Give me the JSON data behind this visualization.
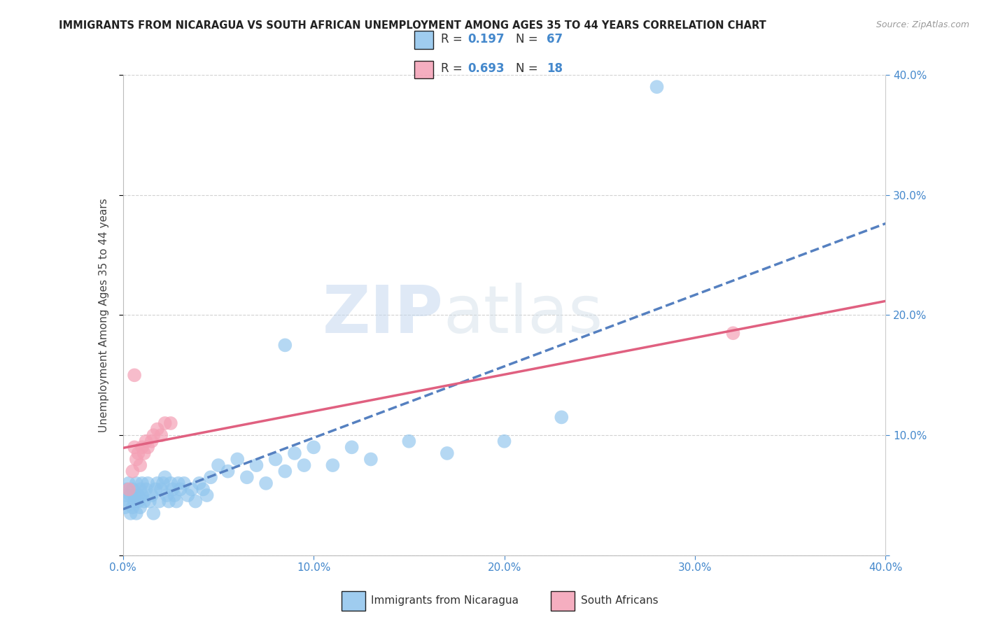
{
  "title": "IMMIGRANTS FROM NICARAGUA VS SOUTH AFRICAN UNEMPLOYMENT AMONG AGES 35 TO 44 YEARS CORRELATION CHART",
  "source": "Source: ZipAtlas.com",
  "ylabel": "Unemployment Among Ages 35 to 44 years",
  "xlim": [
    0.0,
    0.4
  ],
  "ylim": [
    0.0,
    0.4
  ],
  "xticks": [
    0.0,
    0.1,
    0.2,
    0.3,
    0.4
  ],
  "yticks": [
    0.0,
    0.1,
    0.2,
    0.3,
    0.4
  ],
  "grid_color": "#cccccc",
  "watermark_zip": "ZIP",
  "watermark_atlas": "atlas",
  "r_nicaragua": 0.197,
  "n_nicaragua": 67,
  "r_south_africa": 0.693,
  "n_south_africa": 18,
  "color_nicaragua": "#8ec4ed",
  "color_south_africa": "#f4a0b5",
  "trendline_nicaragua_color": "#5580c0",
  "trendline_south_africa_color": "#e06080",
  "nic_x": [
    0.001,
    0.002,
    0.002,
    0.003,
    0.003,
    0.004,
    0.004,
    0.005,
    0.005,
    0.006,
    0.006,
    0.007,
    0.007,
    0.008,
    0.008,
    0.009,
    0.009,
    0.01,
    0.01,
    0.011,
    0.012,
    0.013,
    0.014,
    0.015,
    0.016,
    0.017,
    0.018,
    0.019,
    0.02,
    0.021,
    0.022,
    0.023,
    0.024,
    0.025,
    0.026,
    0.027,
    0.028,
    0.029,
    0.03,
    0.032,
    0.034,
    0.036,
    0.038,
    0.04,
    0.042,
    0.044,
    0.046,
    0.05,
    0.055,
    0.06,
    0.065,
    0.07,
    0.075,
    0.08,
    0.085,
    0.09,
    0.095,
    0.1,
    0.11,
    0.12,
    0.13,
    0.15,
    0.17,
    0.2,
    0.23,
    0.085,
    0.28
  ],
  "nic_y": [
    0.04,
    0.05,
    0.055,
    0.045,
    0.06,
    0.035,
    0.05,
    0.04,
    0.055,
    0.045,
    0.05,
    0.06,
    0.035,
    0.05,
    0.045,
    0.04,
    0.055,
    0.05,
    0.06,
    0.045,
    0.055,
    0.06,
    0.045,
    0.05,
    0.035,
    0.055,
    0.06,
    0.045,
    0.055,
    0.06,
    0.065,
    0.05,
    0.045,
    0.06,
    0.055,
    0.05,
    0.045,
    0.06,
    0.055,
    0.06,
    0.05,
    0.055,
    0.045,
    0.06,
    0.055,
    0.05,
    0.065,
    0.075,
    0.07,
    0.08,
    0.065,
    0.075,
    0.06,
    0.08,
    0.07,
    0.085,
    0.075,
    0.09,
    0.075,
    0.09,
    0.08,
    0.095,
    0.085,
    0.095,
    0.115,
    0.175,
    0.39
  ],
  "sa_x": [
    0.003,
    0.005,
    0.006,
    0.007,
    0.008,
    0.009,
    0.01,
    0.011,
    0.012,
    0.013,
    0.015,
    0.016,
    0.018,
    0.02,
    0.022,
    0.025,
    0.006,
    0.32
  ],
  "sa_y": [
    0.055,
    0.07,
    0.09,
    0.08,
    0.085,
    0.075,
    0.09,
    0.085,
    0.095,
    0.09,
    0.095,
    0.1,
    0.105,
    0.1,
    0.11,
    0.11,
    0.15,
    0.185
  ],
  "legend_title_color": "#4488cc",
  "legend_r_color": "#4488cc",
  "legend_n_color": "#4488cc",
  "bottom_legend_labels": [
    "Immigrants from Nicaragua",
    "South Africans"
  ]
}
